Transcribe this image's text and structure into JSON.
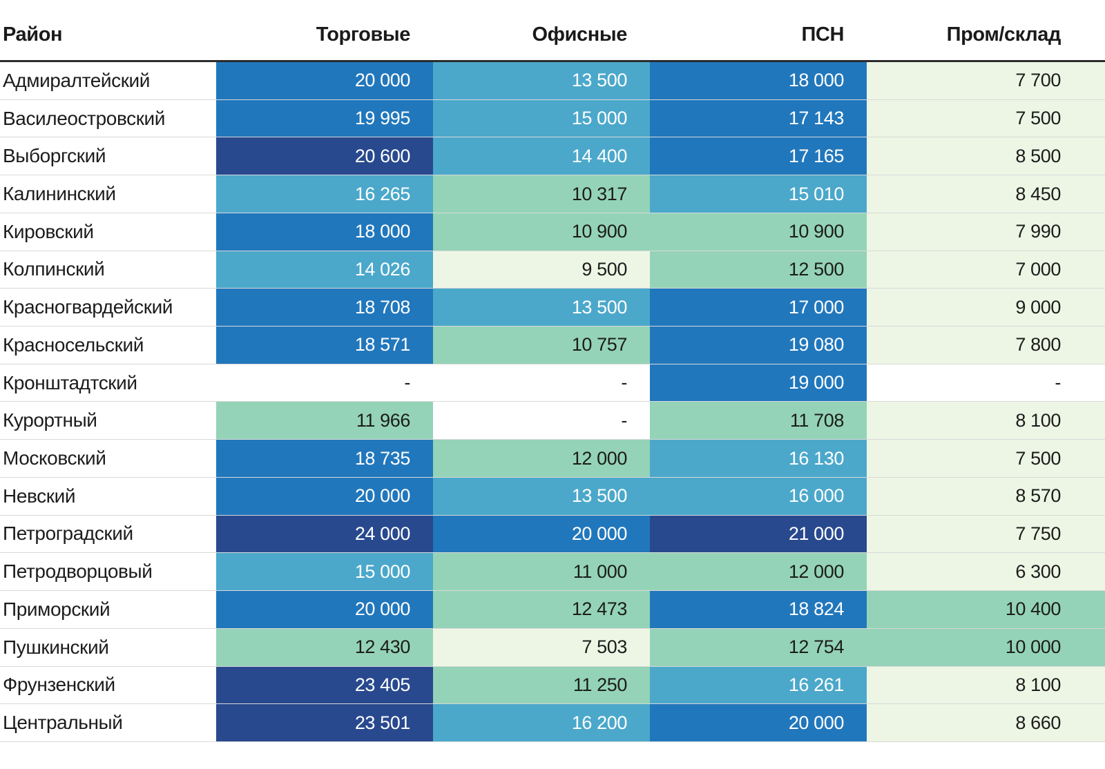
{
  "chart_data": {
    "type": "heatmap-table",
    "columns": [
      "Район",
      "Торговые",
      "Офисные",
      "ПСН",
      "Пром/склад"
    ],
    "rows": [
      {
        "district": "Адмиралтейский",
        "values": [
          20000,
          13500,
          18000,
          7700
        ]
      },
      {
        "district": "Василеостровский",
        "values": [
          19995,
          15000,
          17143,
          7500
        ]
      },
      {
        "district": "Выборгский",
        "values": [
          20600,
          14400,
          17165,
          8500
        ]
      },
      {
        "district": "Калининский",
        "values": [
          16265,
          10317,
          15010,
          8450
        ]
      },
      {
        "district": "Кировский",
        "values": [
          18000,
          10900,
          10900,
          7990
        ]
      },
      {
        "district": "Колпинский",
        "values": [
          14026,
          9500,
          12500,
          7000
        ]
      },
      {
        "district": "Красногвардейский",
        "values": [
          18708,
          13500,
          17000,
          9000
        ]
      },
      {
        "district": "Красносельский",
        "values": [
          18571,
          10757,
          19080,
          7800
        ]
      },
      {
        "district": "Кронштадтский",
        "values": [
          null,
          null,
          19000,
          null
        ]
      },
      {
        "district": "Курортный",
        "values": [
          11966,
          null,
          11708,
          8100
        ]
      },
      {
        "district": "Московский",
        "values": [
          18735,
          12000,
          16130,
          7500
        ]
      },
      {
        "district": "Невский",
        "values": [
          20000,
          13500,
          16000,
          8570
        ]
      },
      {
        "district": "Петроградский",
        "values": [
          24000,
          20000,
          21000,
          7750
        ]
      },
      {
        "district": "Петродворцовый",
        "values": [
          15000,
          11000,
          12000,
          6300
        ]
      },
      {
        "district": "Приморский",
        "values": [
          20000,
          12473,
          18824,
          10400
        ]
      },
      {
        "district": "Пушкинский",
        "values": [
          12430,
          7503,
          12754,
          10000
        ]
      },
      {
        "district": "Фрунзенский",
        "values": [
          23405,
          11250,
          16261,
          8100
        ]
      },
      {
        "district": "Центральный",
        "values": [
          23501,
          16200,
          20000,
          8660
        ]
      }
    ],
    "empty_value_label": "-",
    "number_group_separator": " ",
    "color_scale": {
      "bins": [
        {
          "min": 0,
          "color": "#edf6e4",
          "text": "#1c1c1c"
        },
        {
          "min": 10000,
          "color": "#94d3b7",
          "text": "#1c1c1c"
        },
        {
          "min": 13000,
          "color": "#4ba8cb",
          "text": "#ffffff"
        },
        {
          "min": 16700,
          "color": "#2177bc",
          "text": "#ffffff"
        },
        {
          "min": 20300,
          "color": "#28498e",
          "text": "#ffffff"
        }
      ],
      "empty_color": "#ffffff",
      "header_border_color": "#2b2b2b",
      "row_divider_color": "#d9d9d9"
    }
  }
}
